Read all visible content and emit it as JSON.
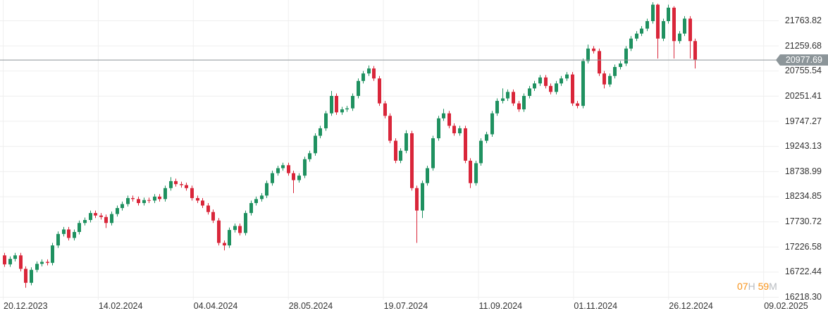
{
  "chart_data": {
    "type": "candlestick",
    "title": "",
    "last_price": "20977.69",
    "y_ticks": [
      "21763.82",
      "21259.68",
      "20755.54",
      "20251.41",
      "19747.27",
      "19243.13",
      "18738.99",
      "18234.85",
      "17730.72",
      "17226.58",
      "16722.44",
      "16218.30"
    ],
    "x_ticks": [
      "20.12.2023",
      "14.02.2024",
      "04.04.2024",
      "28.05.2024",
      "19.07.2024",
      "11.09.2024",
      "01.11.2024",
      "26.12.2024",
      "09.02.2025"
    ],
    "ylim": [
      16218.3,
      21763.82
    ],
    "grid": true,
    "colors": {
      "up": "#1f9160",
      "down": "#d9263a",
      "price_line": "#8c9599",
      "grid": "#efefef"
    },
    "candles_ohlc": [
      [
        17050,
        17100,
        16820,
        16870
      ],
      [
        16870,
        17030,
        16820,
        16980
      ],
      [
        16980,
        17100,
        16930,
        17050
      ],
      [
        17050,
        17100,
        16730,
        16780
      ],
      [
        16780,
        16830,
        16400,
        16500
      ],
      [
        16500,
        16810,
        16450,
        16760
      ],
      [
        16760,
        16930,
        16710,
        16880
      ],
      [
        16880,
        16970,
        16830,
        16920
      ],
      [
        16920,
        16970,
        16850,
        16900
      ],
      [
        16900,
        17300,
        16850,
        17250
      ],
      [
        17250,
        17530,
        17200,
        17480
      ],
      [
        17480,
        17620,
        17430,
        17570
      ],
      [
        17570,
        17620,
        17350,
        17400
      ],
      [
        17400,
        17570,
        17350,
        17520
      ],
      [
        17520,
        17750,
        17470,
        17700
      ],
      [
        17700,
        17810,
        17650,
        17760
      ],
      [
        17760,
        17950,
        17710,
        17900
      ],
      [
        17900,
        17950,
        17800,
        17850
      ],
      [
        17850,
        17900,
        17770,
        17820
      ],
      [
        17820,
        17870,
        17600,
        17700
      ],
      [
        17700,
        17930,
        17650,
        17880
      ],
      [
        17880,
        18050,
        17830,
        18000
      ],
      [
        18000,
        18130,
        17950,
        18080
      ],
      [
        18080,
        18250,
        18030,
        18200
      ],
      [
        18200,
        18250,
        18130,
        18180
      ],
      [
        18180,
        18230,
        18050,
        18100
      ],
      [
        18100,
        18210,
        18050,
        18160
      ],
      [
        18160,
        18210,
        18100,
        18150
      ],
      [
        18150,
        18280,
        18100,
        18230
      ],
      [
        18230,
        18280,
        18130,
        18180
      ],
      [
        18180,
        18450,
        18130,
        18400
      ],
      [
        18400,
        18620,
        18350,
        18540
      ],
      [
        18540,
        18590,
        18430,
        18480
      ],
      [
        18480,
        18530,
        18410,
        18460
      ],
      [
        18460,
        18510,
        18350,
        18400
      ],
      [
        18400,
        18450,
        18150,
        18200
      ],
      [
        18200,
        18250,
        18100,
        18150
      ],
      [
        18150,
        18200,
        18000,
        18050
      ],
      [
        18050,
        18100,
        17870,
        17920
      ],
      [
        17920,
        17970,
        17700,
        17750
      ],
      [
        17750,
        17800,
        17250,
        17300
      ],
      [
        17300,
        17350,
        17150,
        17250
      ],
      [
        17250,
        17610,
        17200,
        17560
      ],
      [
        17560,
        17690,
        17510,
        17640
      ],
      [
        17640,
        17690,
        17450,
        17500
      ],
      [
        17500,
        17950,
        17450,
        17900
      ],
      [
        17900,
        18150,
        17850,
        18100
      ],
      [
        18100,
        18230,
        18050,
        18180
      ],
      [
        18180,
        18300,
        18130,
        18250
      ],
      [
        18250,
        18550,
        18200,
        18500
      ],
      [
        18500,
        18750,
        18450,
        18700
      ],
      [
        18700,
        18850,
        18650,
        18800
      ],
      [
        18800,
        18910,
        18750,
        18860
      ],
      [
        18860,
        18910,
        18650,
        18700
      ],
      [
        18700,
        18750,
        18300,
        18560
      ],
      [
        18560,
        18700,
        18510,
        18650
      ],
      [
        18650,
        19030,
        18600,
        18980
      ],
      [
        18980,
        19150,
        18930,
        19100
      ],
      [
        19100,
        19500,
        19050,
        19450
      ],
      [
        19450,
        19650,
        19400,
        19600
      ],
      [
        19600,
        19950,
        19550,
        19900
      ],
      [
        19900,
        20350,
        19850,
        20250
      ],
      [
        20250,
        20300,
        19870,
        19920
      ],
      [
        19920,
        20030,
        19870,
        19980
      ],
      [
        19980,
        20050,
        19930,
        20000
      ],
      [
        20000,
        20300,
        19950,
        20250
      ],
      [
        20250,
        20600,
        20200,
        20550
      ],
      [
        20550,
        20750,
        20500,
        20700
      ],
      [
        20700,
        20860,
        20650,
        20800
      ],
      [
        20800,
        20850,
        20550,
        20600
      ],
      [
        20600,
        20650,
        20050,
        20100
      ],
      [
        20100,
        20150,
        19800,
        19850
      ],
      [
        19850,
        19900,
        19300,
        19350
      ],
      [
        19350,
        19400,
        18900,
        18950
      ],
      [
        18950,
        19200,
        18900,
        19150
      ],
      [
        19150,
        19560,
        19100,
        19500
      ],
      [
        19500,
        19550,
        18350,
        18400
      ],
      [
        18400,
        18450,
        17300,
        17950
      ],
      [
        17950,
        18550,
        17800,
        18500
      ],
      [
        18500,
        18850,
        18450,
        18800
      ],
      [
        18800,
        19450,
        18750,
        19400
      ],
      [
        19400,
        19850,
        19350,
        19800
      ],
      [
        19800,
        19990,
        19750,
        19900
      ],
      [
        19900,
        19950,
        19600,
        19650
      ],
      [
        19650,
        19700,
        19450,
        19500
      ],
      [
        19500,
        19650,
        19450,
        19600
      ],
      [
        19600,
        19650,
        18900,
        18950
      ],
      [
        18950,
        19000,
        18400,
        18500
      ],
      [
        18500,
        18950,
        18450,
        18900
      ],
      [
        18900,
        19400,
        18850,
        19350
      ],
      [
        19350,
        19530,
        19300,
        19480
      ],
      [
        19480,
        19950,
        19430,
        19900
      ],
      [
        19900,
        20200,
        19850,
        20150
      ],
      [
        20150,
        20400,
        20100,
        20200
      ],
      [
        20200,
        20380,
        20150,
        20330
      ],
      [
        20330,
        20380,
        20050,
        20100
      ],
      [
        20100,
        20150,
        19930,
        19980
      ],
      [
        19980,
        20300,
        19930,
        20250
      ],
      [
        20250,
        20450,
        20200,
        20400
      ],
      [
        20400,
        20550,
        20350,
        20500
      ],
      [
        20500,
        20670,
        20450,
        20620
      ],
      [
        20620,
        20670,
        20400,
        20450
      ],
      [
        20450,
        20500,
        20280,
        20330
      ],
      [
        20330,
        20550,
        20280,
        20500
      ],
      [
        20500,
        20650,
        20450,
        20600
      ],
      [
        20600,
        20730,
        20550,
        20680
      ],
      [
        20680,
        20730,
        20050,
        20100
      ],
      [
        20100,
        20150,
        20000,
        20050
      ],
      [
        20050,
        21000,
        20000,
        20950
      ],
      [
        20950,
        21280,
        20900,
        21200
      ],
      [
        21200,
        21250,
        21100,
        21150
      ],
      [
        21150,
        21200,
        20650,
        20700
      ],
      [
        20700,
        20750,
        20400,
        20480
      ],
      [
        20480,
        20700,
        20430,
        20650
      ],
      [
        20650,
        20880,
        20600,
        20830
      ],
      [
        20830,
        20950,
        20780,
        20900
      ],
      [
        20900,
        21250,
        20850,
        21200
      ],
      [
        21200,
        21450,
        21150,
        21400
      ],
      [
        21400,
        21550,
        21350,
        21500
      ],
      [
        21500,
        21650,
        21450,
        21600
      ],
      [
        21600,
        21800,
        21550,
        21750
      ],
      [
        21750,
        22130,
        21700,
        22080
      ],
      [
        22080,
        22100,
        21000,
        21400
      ],
      [
        21400,
        21800,
        21350,
        21750
      ],
      [
        21750,
        22080,
        21700,
        22020
      ],
      [
        22020,
        22050,
        21000,
        21350
      ],
      [
        21350,
        21550,
        21300,
        21500
      ],
      [
        21500,
        21850,
        21450,
        21800
      ],
      [
        21800,
        21850,
        21000,
        21350
      ],
      [
        21350,
        21400,
        20800,
        20977.69
      ]
    ]
  },
  "countdown": {
    "hours": "07",
    "hours_unit": "H",
    "minutes": "59",
    "minutes_unit": "M"
  }
}
